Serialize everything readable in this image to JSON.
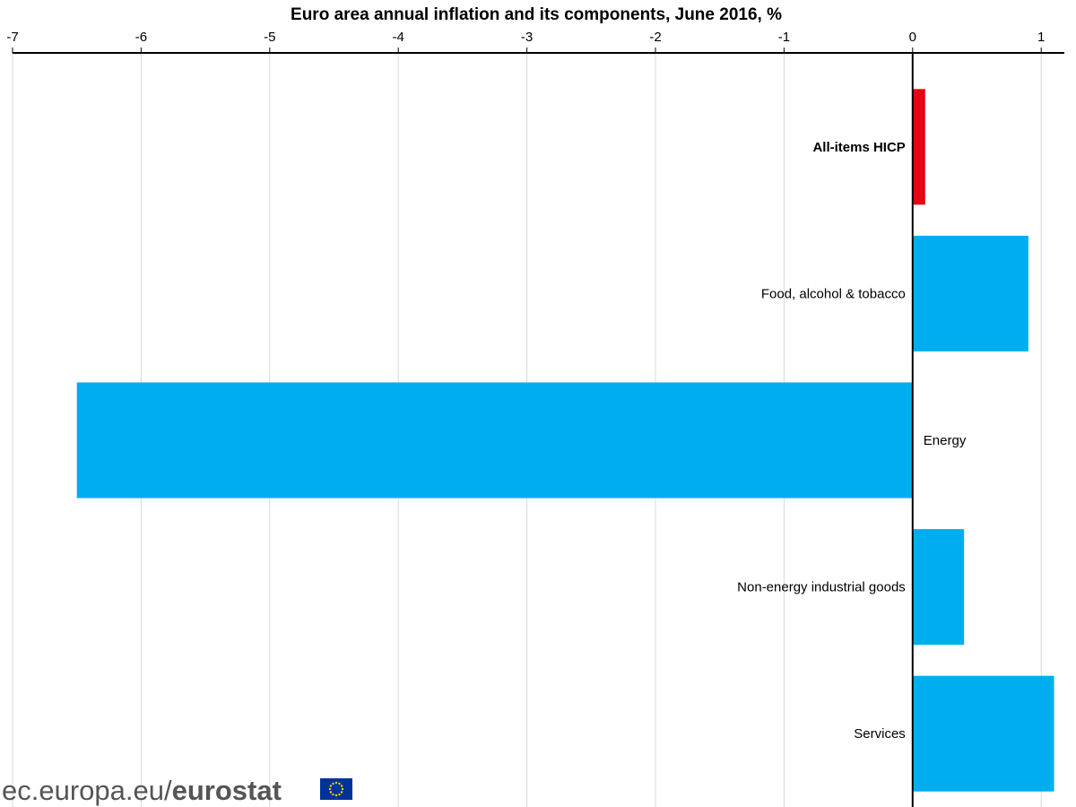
{
  "chart_data": {
    "type": "bar",
    "orientation": "horizontal",
    "title": "Euro area annual inflation and its components, June 2016, %",
    "xlabel": "",
    "ylabel": "",
    "xlim": [
      -7,
      1.2
    ],
    "x_ticks": [
      "-7",
      "-6",
      "-5",
      "-4",
      "-3",
      "-2",
      "-1",
      "0",
      "1"
    ],
    "x_axis_position": "top",
    "grid": true,
    "legend": "none",
    "categories": [
      "All-items HICP",
      "Food, alcohol & tobacco",
      "Energy",
      "Non-energy industrial goods",
      "Services"
    ],
    "values": [
      0.1,
      0.9,
      -6.5,
      0.4,
      1.1
    ],
    "bar_colors": [
      "#e30613",
      "#00aeef",
      "#00aeef",
      "#00aeef",
      "#00aeef"
    ],
    "bold_categories": [
      "All-items HICP"
    ]
  },
  "source": {
    "prefix": "ec.europa.eu/",
    "brand": "eurostat"
  },
  "colors": {
    "highlight": "#e30613",
    "bars": "#00aeef",
    "eu_flag_blue": "#003399",
    "eu_flag_stars": "#ffcc00"
  }
}
